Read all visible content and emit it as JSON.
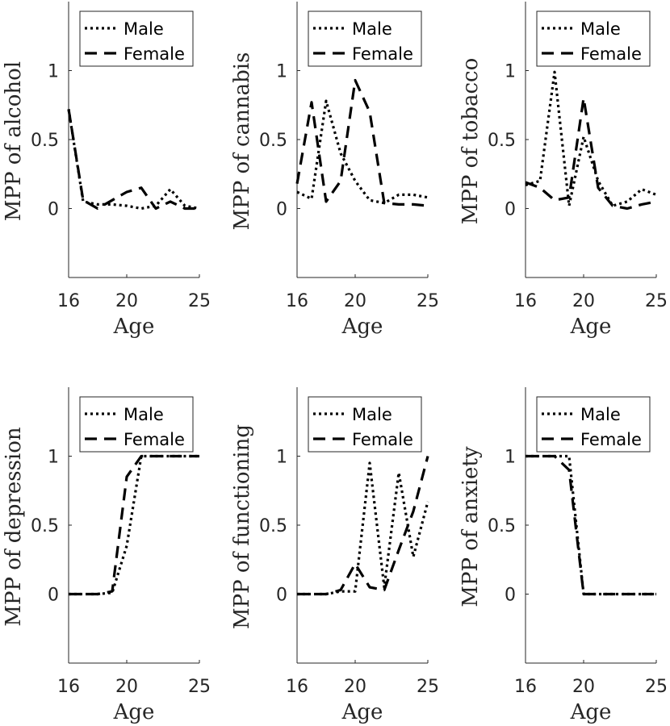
{
  "chart_data": [
    {
      "type": "line",
      "ylabel": "MPP of alcohol",
      "xlabel": "Age",
      "xlim": [
        16,
        25
      ],
      "ylim": [
        -0.5,
        1.5
      ],
      "xticks": [
        "16",
        "20",
        "25"
      ],
      "yticks": [
        "0",
        "0.5",
        "1"
      ],
      "series": [
        {
          "name": "Male",
          "style": "dotted",
          "x": [
            16,
            17,
            18,
            19,
            20,
            21,
            22,
            23,
            24,
            25
          ],
          "y": [
            0.72,
            0.05,
            0.03,
            0.03,
            0.02,
            0.0,
            0.02,
            0.14,
            0.02,
            0.0
          ]
        },
        {
          "name": "Female",
          "style": "dashed",
          "x": [
            16,
            17,
            18,
            19,
            20,
            21,
            22,
            23,
            24,
            25
          ],
          "y": [
            0.72,
            0.06,
            0.0,
            0.06,
            0.12,
            0.15,
            0.0,
            0.05,
            0.0,
            0.0
          ]
        }
      ]
    },
    {
      "type": "line",
      "ylabel": "MPP of cannabis",
      "xlabel": "Age",
      "xlim": [
        16,
        25
      ],
      "ylim": [
        -0.5,
        1.5
      ],
      "xticks": [
        "16",
        "20",
        "25"
      ],
      "yticks": [
        "0",
        "0.5",
        "1"
      ],
      "series": [
        {
          "name": "Male",
          "style": "dotted",
          "x": [
            16,
            17,
            18,
            19,
            20,
            21,
            22,
            23,
            24,
            25
          ],
          "y": [
            0.12,
            0.07,
            0.78,
            0.4,
            0.2,
            0.06,
            0.04,
            0.1,
            0.1,
            0.08
          ]
        },
        {
          "name": "Female",
          "style": "dashed",
          "x": [
            16,
            17,
            18,
            19,
            20,
            21,
            22,
            23,
            24,
            25
          ],
          "y": [
            0.18,
            0.77,
            0.05,
            0.2,
            0.93,
            0.7,
            0.04,
            0.03,
            0.03,
            0.02
          ]
        }
      ]
    },
    {
      "type": "line",
      "ylabel": "MPP of tobacco",
      "xlabel": "Age",
      "xlim": [
        16,
        25
      ],
      "ylim": [
        -0.5,
        1.5
      ],
      "xticks": [
        "16",
        "20",
        "25"
      ],
      "yticks": [
        "0",
        "0.5",
        "1"
      ],
      "series": [
        {
          "name": "Male",
          "style": "dotted",
          "x": [
            16,
            17,
            18,
            19,
            20,
            21,
            22,
            23,
            24,
            25
          ],
          "y": [
            0.17,
            0.2,
            0.99,
            0.02,
            0.52,
            0.2,
            0.02,
            0.05,
            0.14,
            0.1
          ]
        },
        {
          "name": "Female",
          "style": "dashed",
          "x": [
            16,
            17,
            18,
            19,
            20,
            21,
            22,
            23,
            24,
            25
          ],
          "y": [
            0.19,
            0.15,
            0.06,
            0.08,
            0.8,
            0.15,
            0.02,
            0.0,
            0.03,
            0.05
          ]
        }
      ]
    },
    {
      "type": "line",
      "ylabel": "MPP of depression",
      "xlabel": "Age",
      "xlim": [
        16,
        25
      ],
      "ylim": [
        -0.5,
        1.5
      ],
      "xticks": [
        "16",
        "20",
        "25"
      ],
      "yticks": [
        "0",
        "0.5",
        "1"
      ],
      "series": [
        {
          "name": "Male",
          "style": "dotted",
          "x": [
            16,
            17,
            18,
            19,
            20,
            21,
            22,
            23,
            24,
            25
          ],
          "y": [
            0,
            0,
            0,
            0.01,
            0.35,
            1.0,
            1.0,
            1.0,
            1.0,
            1.0
          ]
        },
        {
          "name": "Female",
          "style": "dashed",
          "x": [
            16,
            17,
            18,
            19,
            20,
            21,
            22,
            23,
            24,
            25
          ],
          "y": [
            0,
            0,
            0,
            0.02,
            0.85,
            1.0,
            1.0,
            1.0,
            1.0,
            1.0
          ]
        }
      ]
    },
    {
      "type": "line",
      "ylabel": "MPP of functioning",
      "xlabel": "Age",
      "xlim": [
        16,
        25
      ],
      "ylim": [
        -0.5,
        1.5
      ],
      "xticks": [
        "16",
        "20",
        "25"
      ],
      "yticks": [
        "0",
        "0.5",
        "1"
      ],
      "series": [
        {
          "name": "Male",
          "style": "dotted",
          "x": [
            16,
            17,
            18,
            19,
            20,
            21,
            22,
            23,
            24,
            25
          ],
          "y": [
            0,
            0,
            0,
            0.02,
            0.02,
            0.95,
            0.05,
            0.88,
            0.27,
            0.67
          ]
        },
        {
          "name": "Female",
          "style": "dashed",
          "x": [
            16,
            17,
            18,
            19,
            20,
            21,
            22,
            23,
            24,
            25
          ],
          "y": [
            0,
            0,
            0,
            0.03,
            0.22,
            0.05,
            0.03,
            0.32,
            0.6,
            1.0
          ]
        }
      ]
    },
    {
      "type": "line",
      "ylabel": "MPP of anxiety",
      "xlabel": "Age",
      "xlim": [
        16,
        25
      ],
      "ylim": [
        -0.5,
        1.5
      ],
      "xticks": [
        "16",
        "20",
        "25"
      ],
      "yticks": [
        "0",
        "0.5",
        "1"
      ],
      "series": [
        {
          "name": "Male",
          "style": "dotted",
          "x": [
            16,
            17,
            18,
            19,
            20,
            21,
            22,
            23,
            24,
            25
          ],
          "y": [
            1,
            1,
            1,
            1,
            0,
            0,
            0,
            0,
            0,
            0
          ]
        },
        {
          "name": "Female",
          "style": "dashed",
          "x": [
            16,
            17,
            18,
            19,
            20,
            21,
            22,
            23,
            24,
            25
          ],
          "y": [
            1,
            1,
            1,
            0.9,
            0,
            0,
            0,
            0,
            0,
            0
          ]
        }
      ]
    }
  ]
}
